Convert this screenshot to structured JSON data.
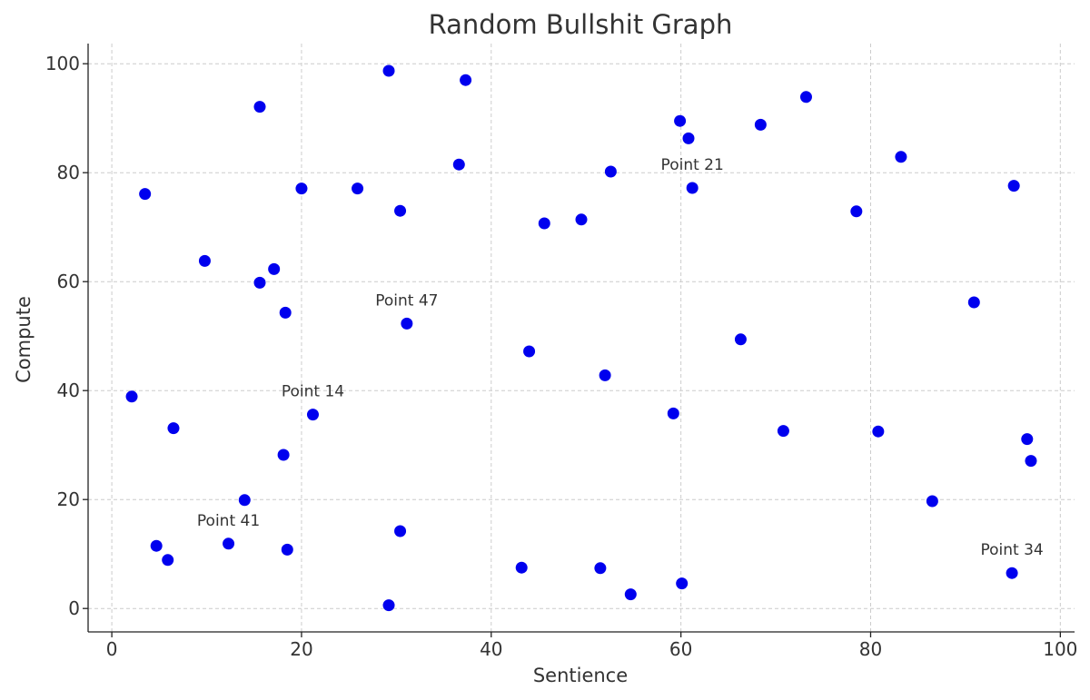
{
  "chart_data": {
    "type": "scatter",
    "title": "Random Bullshit Graph",
    "xlabel": "Sentience",
    "ylabel": "Compute",
    "xlim": [
      -2.5,
      101.5
    ],
    "ylim": [
      -4.3,
      103.7
    ],
    "xticks": [
      0,
      20,
      40,
      60,
      80,
      100
    ],
    "yticks": [
      0,
      20,
      40,
      60,
      80,
      100
    ],
    "grid": true,
    "color": "#0000ee",
    "x": [
      2.1,
      3.5,
      4.7,
      5.9,
      6.5,
      9.8,
      12.3,
      14.0,
      15.6,
      15.6,
      17.1,
      18.1,
      18.3,
      18.5,
      20.0,
      21.2,
      25.9,
      29.2,
      29.2,
      30.4,
      30.4,
      31.1,
      36.6,
      37.3,
      43.2,
      44.0,
      45.6,
      49.5,
      51.5,
      52.0,
      52.6,
      54.7,
      59.2,
      59.9,
      60.1,
      60.8,
      61.2,
      66.3,
      68.4,
      70.8,
      73.2,
      78.5,
      80.8,
      83.2,
      86.5,
      90.9,
      94.9,
      95.1,
      96.5,
      96.9
    ],
    "y": [
      38.9,
      76.1,
      11.5,
      8.9,
      33.1,
      63.8,
      11.9,
      19.9,
      92.1,
      59.8,
      62.3,
      28.2,
      54.3,
      10.8,
      77.1,
      35.6,
      77.1,
      98.7,
      0.6,
      73.0,
      14.2,
      52.3,
      81.5,
      97.0,
      7.5,
      47.2,
      70.7,
      71.4,
      7.4,
      42.8,
      80.2,
      2.6,
      35.8,
      89.5,
      4.6,
      86.3,
      77.2,
      49.4,
      88.8,
      32.6,
      93.9,
      72.9,
      32.5,
      82.9,
      19.7,
      56.2,
      6.5,
      77.6,
      31.1,
      27.1
    ],
    "annotations": [
      {
        "text": "Point 21",
        "x": 61.2,
        "y": 77.2
      },
      {
        "text": "Point 47",
        "x": 31.1,
        "y": 52.3
      },
      {
        "text": "Point 14",
        "x": 21.2,
        "y": 35.6
      },
      {
        "text": "Point 41",
        "x": 12.3,
        "y": 11.9
      },
      {
        "text": "Point 34",
        "x": 94.9,
        "y": 6.5
      }
    ]
  }
}
